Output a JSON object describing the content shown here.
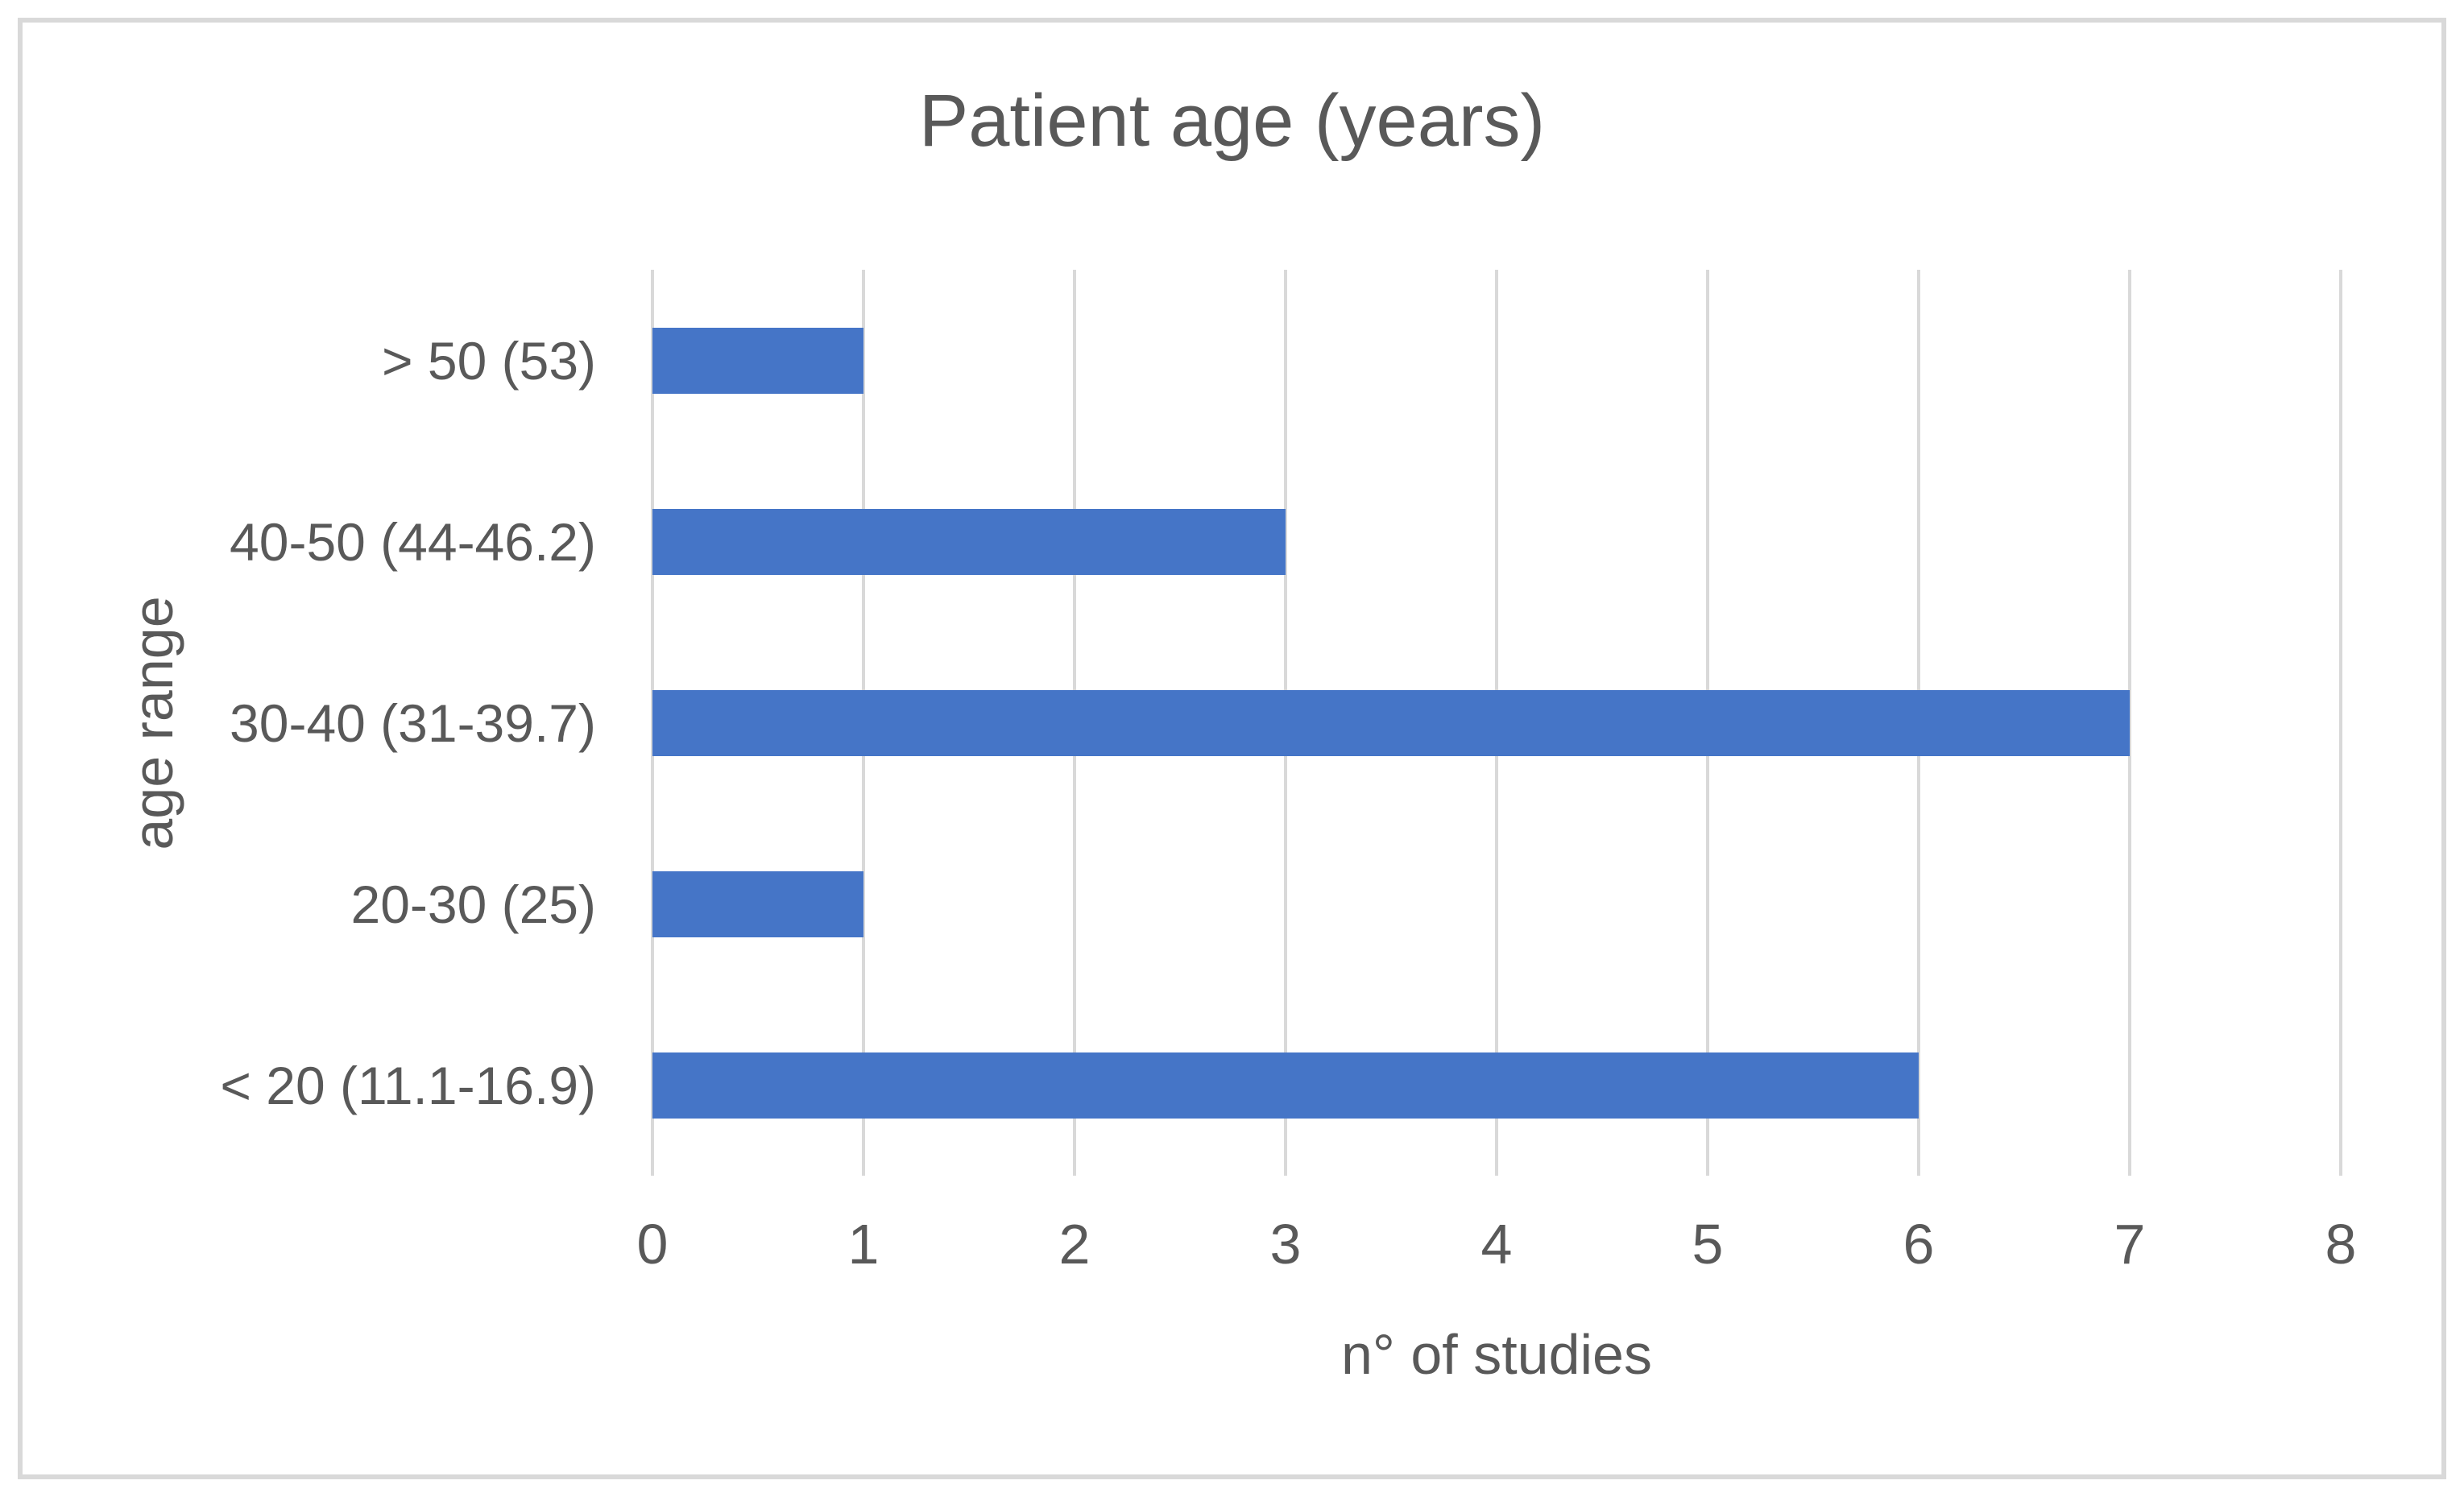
{
  "figure": {
    "background_color": "#ffffff",
    "border_color": "#d9d9d9"
  },
  "chart_data": {
    "type": "bar",
    "orientation": "horizontal",
    "title": "Patient age (years)",
    "xlabel": "n° of studies",
    "ylabel": "age range",
    "categories": [
      "> 50 (53)",
      "40-50 (44-46.2)",
      "30-40 (31-39.7)",
      "20-30 (25)",
      "< 20 (11.1-16.9)"
    ],
    "values": [
      1,
      3,
      7,
      1,
      6
    ],
    "xlim": [
      0,
      8
    ],
    "xticks": [
      0,
      1,
      2,
      3,
      4,
      5,
      6,
      7,
      8
    ],
    "grid": "vertical-only",
    "legend": "none",
    "bar_color": "#4575c7",
    "gridline_color": "#d9d9d9",
    "text_color": "#595959"
  }
}
